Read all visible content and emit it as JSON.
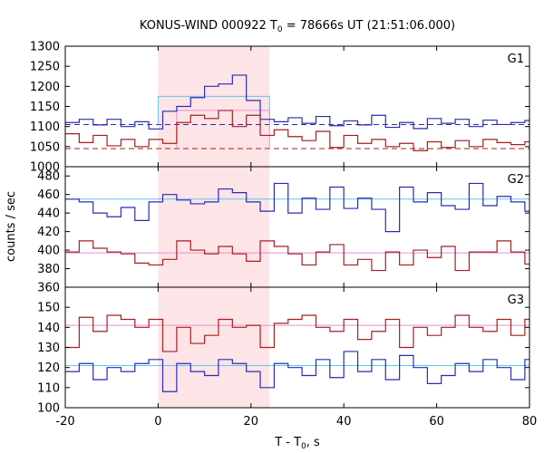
{
  "chart_data": {
    "type": "line",
    "title_main": "KONUS-WIND 000922 T",
    "title_sub": "0",
    "title_rest": " = 78666s UT (21:51:06.000)",
    "xlabel_main": "T - T",
    "xlabel_sub": "0",
    "xlabel_rest": ", s",
    "ylabel": "counts / sec",
    "xlim": [
      -20,
      80
    ],
    "x_ticks": [
      -20,
      0,
      20,
      40,
      60,
      80
    ],
    "highlight_interval": [
      0,
      24
    ],
    "highlight_color": "#fde4e6",
    "colors": {
      "blue_curve": "#2b2bb3",
      "red_curve": "#a51f1f",
      "blue_bg": "#5bc8f0",
      "red_bg": "#e88fd8"
    },
    "bin_edges": [
      -20,
      -17,
      -14,
      -11,
      -8,
      -5,
      -2,
      1,
      4,
      7,
      10,
      13,
      16,
      19,
      22,
      25,
      28,
      31,
      34,
      37,
      40,
      43,
      46,
      49,
      52,
      55,
      58,
      61,
      64,
      67,
      70,
      73,
      76,
      79,
      80
    ],
    "panels": [
      {
        "label": "G1",
        "ylim": [
          1000,
          1300
        ],
        "y_ticks": [
          1000,
          1050,
          1100,
          1150,
          1200,
          1250,
          1300
        ],
        "series": [
          {
            "color_key": "blue_curve",
            "values": [
              1110,
              1118,
              1104,
              1118,
              1100,
              1112,
              1094,
              1138,
              1150,
              1172,
              1200,
              1206,
              1228,
              1165,
              1118,
              1112,
              1122,
              1108,
              1125,
              1102,
              1114,
              1104,
              1128,
              1098,
              1110,
              1095,
              1120,
              1108,
              1118,
              1100,
              1116,
              1105,
              1110,
              1115
            ],
            "background_level": 1105,
            "background_style": "dashed"
          },
          {
            "color_key": "red_curve",
            "values": [
              1082,
              1060,
              1078,
              1052,
              1068,
              1050,
              1068,
              1058,
              1110,
              1128,
              1120,
              1140,
              1100,
              1128,
              1078,
              1092,
              1075,
              1065,
              1088,
              1048,
              1078,
              1058,
              1068,
              1050,
              1058,
              1040,
              1062,
              1048,
              1065,
              1050,
              1068,
              1060,
              1055,
              1062
            ],
            "background_level": 1045,
            "background_style": "dashed"
          }
        ],
        "interval_levels": [
          {
            "color_key": "blue_bg",
            "x": [
              0,
              24
            ],
            "level": 1175
          },
          {
            "color_key": "red_bg",
            "x": [
              4,
              24
            ],
            "level": 1140
          }
        ]
      },
      {
        "label": "G2",
        "ylim": [
          360,
          490
        ],
        "y_ticks": [
          360,
          380,
          400,
          420,
          440,
          460,
          480
        ],
        "series": [
          {
            "color_key": "blue_curve",
            "values": [
              455,
              452,
              440,
              436,
              446,
              432,
              452,
              460,
              454,
              450,
              452,
              466,
              462,
              452,
              442,
              472,
              440,
              456,
              444,
              468,
              445,
              456,
              444,
              420,
              468,
              452,
              462,
              448,
              444,
              472,
              448,
              458,
              452,
              442
            ],
            "background_level": 455,
            "background_style": "solid"
          },
          {
            "color_key": "red_curve",
            "values": [
              398,
              410,
              402,
              398,
              396,
              386,
              384,
              390,
              410,
              400,
              396,
              404,
              396,
              388,
              410,
              404,
              396,
              384,
              398,
              406,
              384,
              390,
              378,
              398,
              384,
              400,
              392,
              404,
              378,
              398,
              398,
              410,
              398,
              385
            ],
            "background_level": 397,
            "background_style": "solid"
          }
        ]
      },
      {
        "label": "G3",
        "ylim": [
          100,
          160
        ],
        "y_ticks": [
          100,
          110,
          120,
          130,
          140,
          150
        ],
        "series": [
          {
            "color_key": "red_curve",
            "values": [
              130,
              145,
              138,
              146,
              144,
              140,
              144,
              128,
              140,
              132,
              136,
              144,
              140,
              141,
              130,
              142,
              144,
              146,
              140,
              138,
              144,
              134,
              138,
              144,
              130,
              140,
              136,
              140,
              146,
              140,
              138,
              144,
              136,
              144
            ],
            "background_level": 141,
            "background_style": "solid"
          },
          {
            "color_key": "blue_curve",
            "values": [
              118,
              122,
              114,
              120,
              118,
              122,
              124,
              108,
              122,
              118,
              116,
              124,
              122,
              118,
              110,
              122,
              120,
              116,
              124,
              115,
              128,
              118,
              124,
              114,
              126,
              120,
              112,
              116,
              122,
              118,
              124,
              120,
              114,
              124
            ],
            "background_level": 121,
            "background_style": "solid"
          }
        ]
      }
    ]
  }
}
